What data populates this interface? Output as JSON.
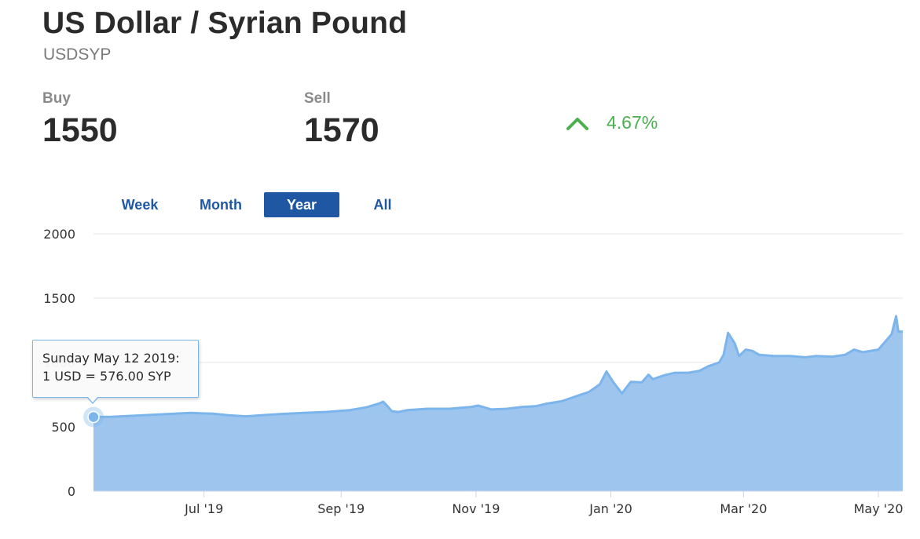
{
  "header": {
    "title": "US Dollar / Syrian Pound",
    "symbol": "USDSYP"
  },
  "prices": {
    "buy_label": "Buy",
    "buy_value": "1550",
    "sell_label": "Sell",
    "sell_value": "1570",
    "change_percent": "4.67%",
    "change_direction": "up",
    "change_color": "#4caf50",
    "change_icon": "chevron-up-icon"
  },
  "tabs": [
    {
      "label": "Week",
      "active": false
    },
    {
      "label": "Month",
      "active": false
    },
    {
      "label": "Year",
      "active": true
    },
    {
      "label": "All",
      "active": false
    }
  ],
  "tooltip": {
    "line1": "Sunday May 12 2019:",
    "line2": "1 USD = 576.00 SYP"
  },
  "chart_data": {
    "type": "area",
    "title": "",
    "xlabel": "",
    "ylabel": "",
    "ylim": [
      0,
      2000
    ],
    "xlim": [
      "2019-05-12",
      "2020-05-12"
    ],
    "yticks": [
      "0",
      "500",
      "1000",
      "1500",
      "2000"
    ],
    "xticks": [
      {
        "date": "2019-07-01",
        "label": "Jul '19"
      },
      {
        "date": "2019-09-01",
        "label": "Sep '19"
      },
      {
        "date": "2019-11-01",
        "label": "Nov '19"
      },
      {
        "date": "2020-01-01",
        "label": "Jan '20"
      },
      {
        "date": "2020-03-01",
        "label": "Mar '20"
      },
      {
        "date": "2020-05-01",
        "label": "May '20"
      }
    ],
    "grid": true,
    "fill_color": "#9dc5ee",
    "line_color": "#7cb5ec",
    "highlighted_point": {
      "x": "2019-05-12",
      "y": 576
    },
    "series": [
      {
        "points": [
          [
            "2019-05-12",
            576
          ],
          [
            "2019-05-20",
            578
          ],
          [
            "2019-06-01",
            588
          ],
          [
            "2019-06-15",
            600
          ],
          [
            "2019-06-25",
            608
          ],
          [
            "2019-07-05",
            602
          ],
          [
            "2019-07-12",
            590
          ],
          [
            "2019-07-20",
            582
          ],
          [
            "2019-07-27",
            590
          ],
          [
            "2019-08-05",
            600
          ],
          [
            "2019-08-15",
            608
          ],
          [
            "2019-08-25",
            615
          ],
          [
            "2019-09-05",
            630
          ],
          [
            "2019-09-12",
            650
          ],
          [
            "2019-09-18",
            680
          ],
          [
            "2019-09-20",
            695
          ],
          [
            "2019-09-22",
            660
          ],
          [
            "2019-09-24",
            620
          ],
          [
            "2019-09-27",
            615
          ],
          [
            "2019-10-01",
            630
          ],
          [
            "2019-10-10",
            640
          ],
          [
            "2019-10-20",
            640
          ],
          [
            "2019-10-30",
            655
          ],
          [
            "2019-11-02",
            665
          ],
          [
            "2019-11-08",
            635
          ],
          [
            "2019-11-15",
            640
          ],
          [
            "2019-11-22",
            655
          ],
          [
            "2019-11-28",
            660
          ],
          [
            "2019-12-03",
            680
          ],
          [
            "2019-12-10",
            700
          ],
          [
            "2019-12-15",
            730
          ],
          [
            "2019-12-22",
            770
          ],
          [
            "2019-12-27",
            830
          ],
          [
            "2019-12-30",
            930
          ],
          [
            "2020-01-02",
            850
          ],
          [
            "2020-01-06",
            760
          ],
          [
            "2020-01-10",
            850
          ],
          [
            "2020-01-15",
            845
          ],
          [
            "2020-01-18",
            905
          ],
          [
            "2020-01-20",
            870
          ],
          [
            "2020-01-25",
            900
          ],
          [
            "2020-01-30",
            920
          ],
          [
            "2020-02-05",
            920
          ],
          [
            "2020-02-10",
            935
          ],
          [
            "2020-02-14",
            970
          ],
          [
            "2020-02-19",
            1000
          ],
          [
            "2020-02-21",
            1060
          ],
          [
            "2020-02-23",
            1230
          ],
          [
            "2020-02-26",
            1150
          ],
          [
            "2020-02-28",
            1050
          ],
          [
            "2020-03-02",
            1100
          ],
          [
            "2020-03-05",
            1090
          ],
          [
            "2020-03-08",
            1060
          ],
          [
            "2020-03-15",
            1050
          ],
          [
            "2020-03-22",
            1050
          ],
          [
            "2020-03-29",
            1040
          ],
          [
            "2020-04-03",
            1050
          ],
          [
            "2020-04-10",
            1045
          ],
          [
            "2020-04-16",
            1060
          ],
          [
            "2020-04-20",
            1100
          ],
          [
            "2020-04-24",
            1080
          ],
          [
            "2020-05-01",
            1100
          ],
          [
            "2020-05-05",
            1180
          ],
          [
            "2020-05-07",
            1220
          ],
          [
            "2020-05-09",
            1360
          ],
          [
            "2020-05-10",
            1240
          ],
          [
            "2020-05-12",
            1240
          ]
        ]
      }
    ]
  }
}
